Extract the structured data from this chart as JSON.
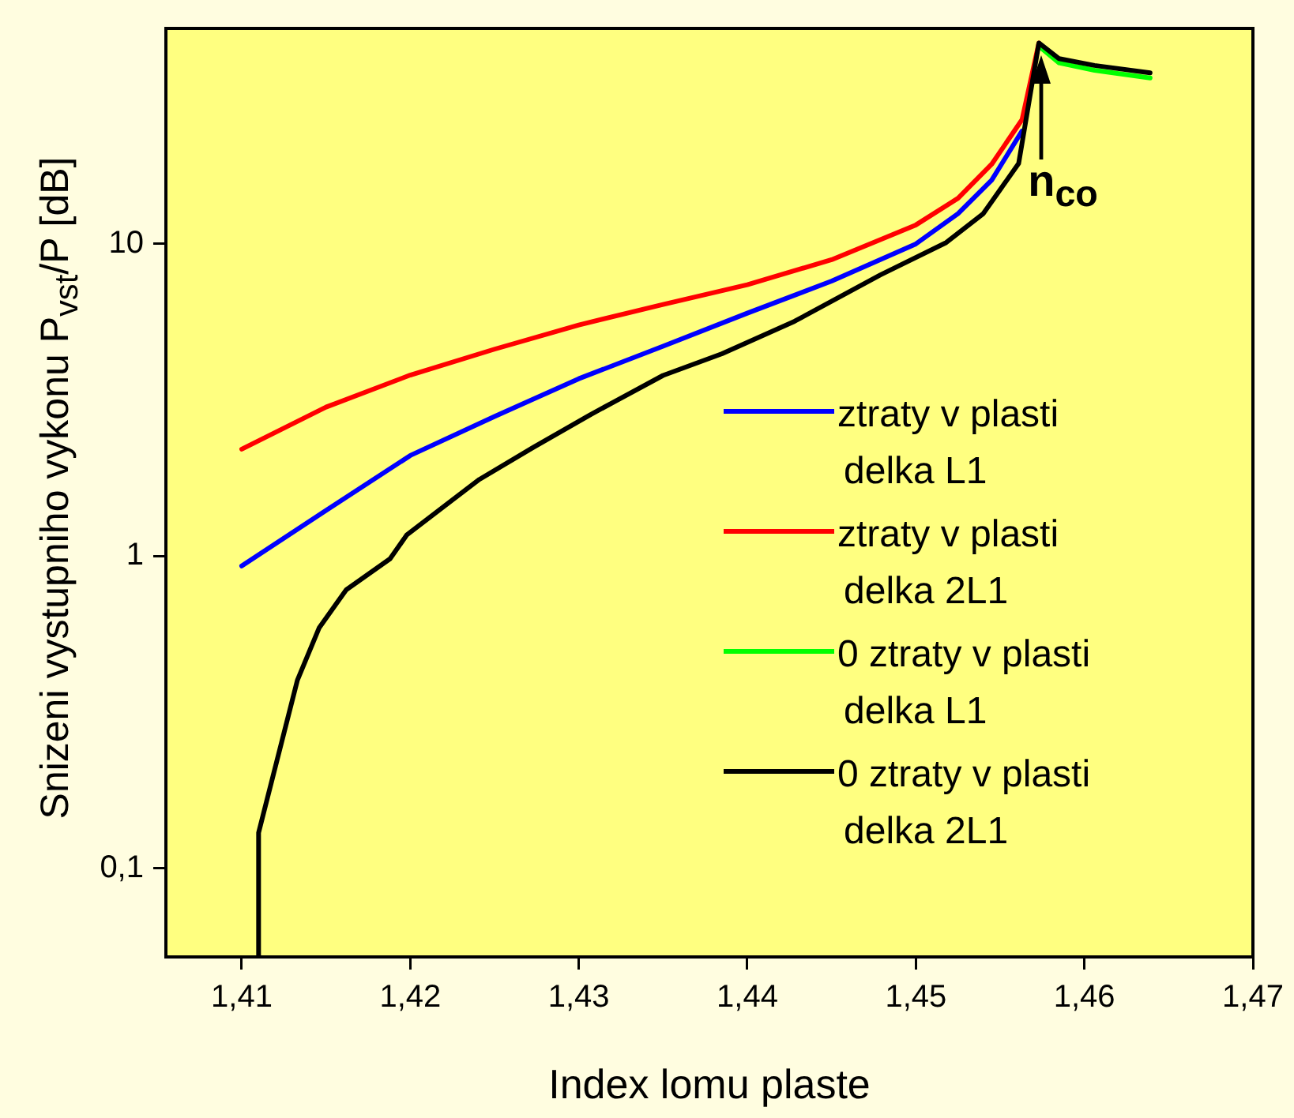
{
  "chart_data": {
    "type": "line",
    "xlabel": "Index lomu plaste",
    "ylabel": "Snizeni  vystupniho vykonu P$_{vst}$/P  [dB]",
    "log": "y",
    "grid": false,
    "legend": "right",
    "marker": "none",
    "line_style": "solid",
    "xlim": [
      1.4055,
      1.47
    ],
    "xticks": [
      {
        "value": 1.41,
        "label": "1,41"
      },
      {
        "value": 1.42,
        "label": "1,42"
      },
      {
        "value": 1.43,
        "label": "1,43"
      },
      {
        "value": 1.44,
        "label": "1,44"
      },
      {
        "value": 1.45,
        "label": "1,45"
      },
      {
        "value": 1.46,
        "label": "1,46"
      },
      {
        "value": 1.47,
        "label": "1,47"
      }
    ],
    "ylim": [
      0.052,
      49
    ],
    "yticks": [
      {
        "value": 0.1,
        "label": "0,1"
      },
      1,
      10
    ],
    "annotations": [
      {
        "text": "n$_{co}$",
        "x": 1.4574,
        "y": 44
      }
    ],
    "series": [
      {
        "name": "ztraty v plasti delka  L1",
        "color": "#0000ff",
        "x": [
          1.41,
          1.415,
          1.42,
          1.425,
          1.43,
          1.435,
          1.44,
          1.445,
          1.45,
          1.4525,
          1.4545,
          1.4563
        ],
        "values": [
          0.93,
          1.4,
          2.1,
          2.8,
          3.7,
          4.7,
          6.0,
          7.6,
          10,
          12.5,
          16,
          23
        ]
      },
      {
        "name": "ztraty v plasti delka 2L1",
        "color": "#ff0000",
        "x": [
          1.41,
          1.415,
          1.42,
          1.425,
          1.43,
          1.435,
          1.44,
          1.445,
          1.45,
          1.4525,
          1.4545,
          1.4563,
          1.4573
        ],
        "values": [
          2.2,
          3.0,
          3.8,
          4.6,
          5.5,
          6.4,
          7.4,
          8.9,
          11.5,
          14,
          18,
          25,
          44
        ]
      },
      {
        "name": "0 ztraty v plasti delka L1",
        "color": "#00ff00",
        "x": [
          1.4573,
          1.4585,
          1.4606,
          1.4639
        ],
        "values": [
          43,
          38,
          36,
          34
        ]
      },
      {
        "name": "0 ztraty v plasti delka 2L1",
        "color": "#000000",
        "x": [
          1.411,
          1.411,
          1.4133,
          1.4146,
          1.4162,
          1.4188,
          1.4198,
          1.4222,
          1.4241,
          1.4273,
          1.4307,
          1.435,
          1.4385,
          1.4428,
          1.4479,
          1.4518,
          1.454,
          1.4561,
          1.4573,
          1.4585,
          1.4606,
          1.4639
        ],
        "values": [
          0.052,
          0.13,
          0.4,
          0.59,
          0.78,
          0.98,
          1.17,
          1.47,
          1.76,
          2.23,
          2.84,
          3.79,
          4.45,
          5.65,
          7.96,
          10.1,
          12.5,
          18.1,
          44,
          39.2,
          37.3,
          35.3
        ]
      }
    ]
  }
}
